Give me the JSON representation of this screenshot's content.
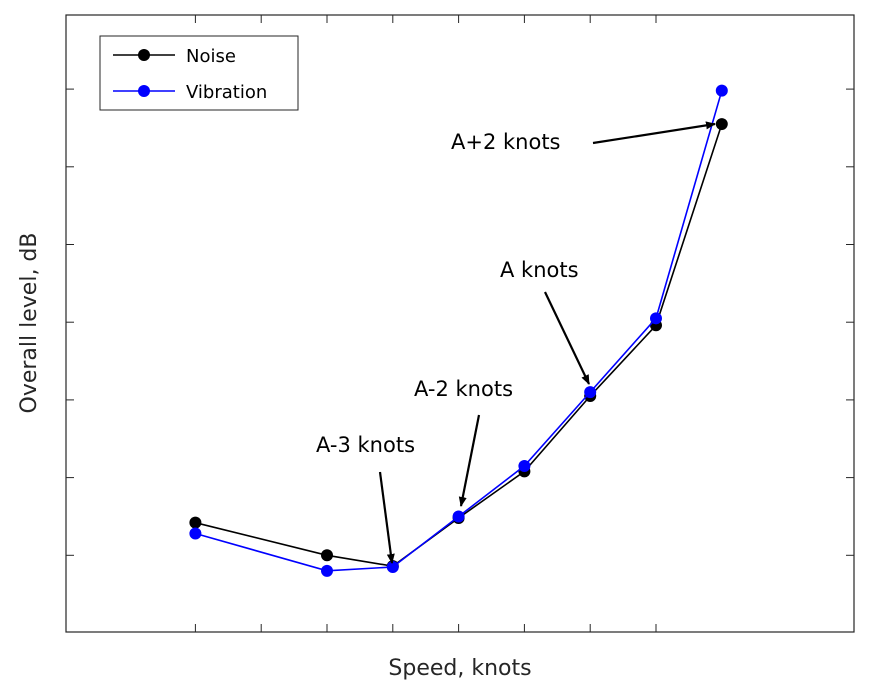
{
  "chart_data": {
    "type": "line",
    "title": "",
    "xlabel": "Speed, knots",
    "ylabel": "Overall level, dB",
    "xlim": [
      -1,
      8
    ],
    "ylim": [
      0,
      10
    ],
    "x_ticks": [
      1,
      2,
      3,
      4,
      5,
      6,
      7,
      8
    ],
    "y_ticks": [
      1,
      2,
      3,
      4,
      5,
      6,
      7,
      8,
      9
    ],
    "grid": false,
    "legend_position": "top-left",
    "series": [
      {
        "name": "Noise",
        "color": "#000000",
        "x": [
          1,
          3,
          4,
          5,
          6,
          7,
          8,
          9
        ],
        "y": [
          1.42,
          1.0,
          0.86,
          1.48,
          2.08,
          3.05,
          3.96,
          6.55
        ]
      },
      {
        "name": "Vibration",
        "color": "#0000ff",
        "x": [
          1,
          3,
          4,
          5,
          6,
          7,
          8,
          9
        ],
        "y": [
          1.28,
          0.8,
          0.85,
          1.5,
          2.15,
          3.1,
          4.05,
          6.98
        ]
      }
    ],
    "annotations": [
      {
        "text": "A-3 knots",
        "target": [
          4,
          0.86
        ]
      },
      {
        "text": "A-2 knots",
        "target": [
          5,
          1.5
        ]
      },
      {
        "text": "A knots",
        "target": [
          7,
          3.1
        ]
      },
      {
        "text": "A+2 knots",
        "target": [
          9,
          6.55
        ]
      }
    ]
  }
}
